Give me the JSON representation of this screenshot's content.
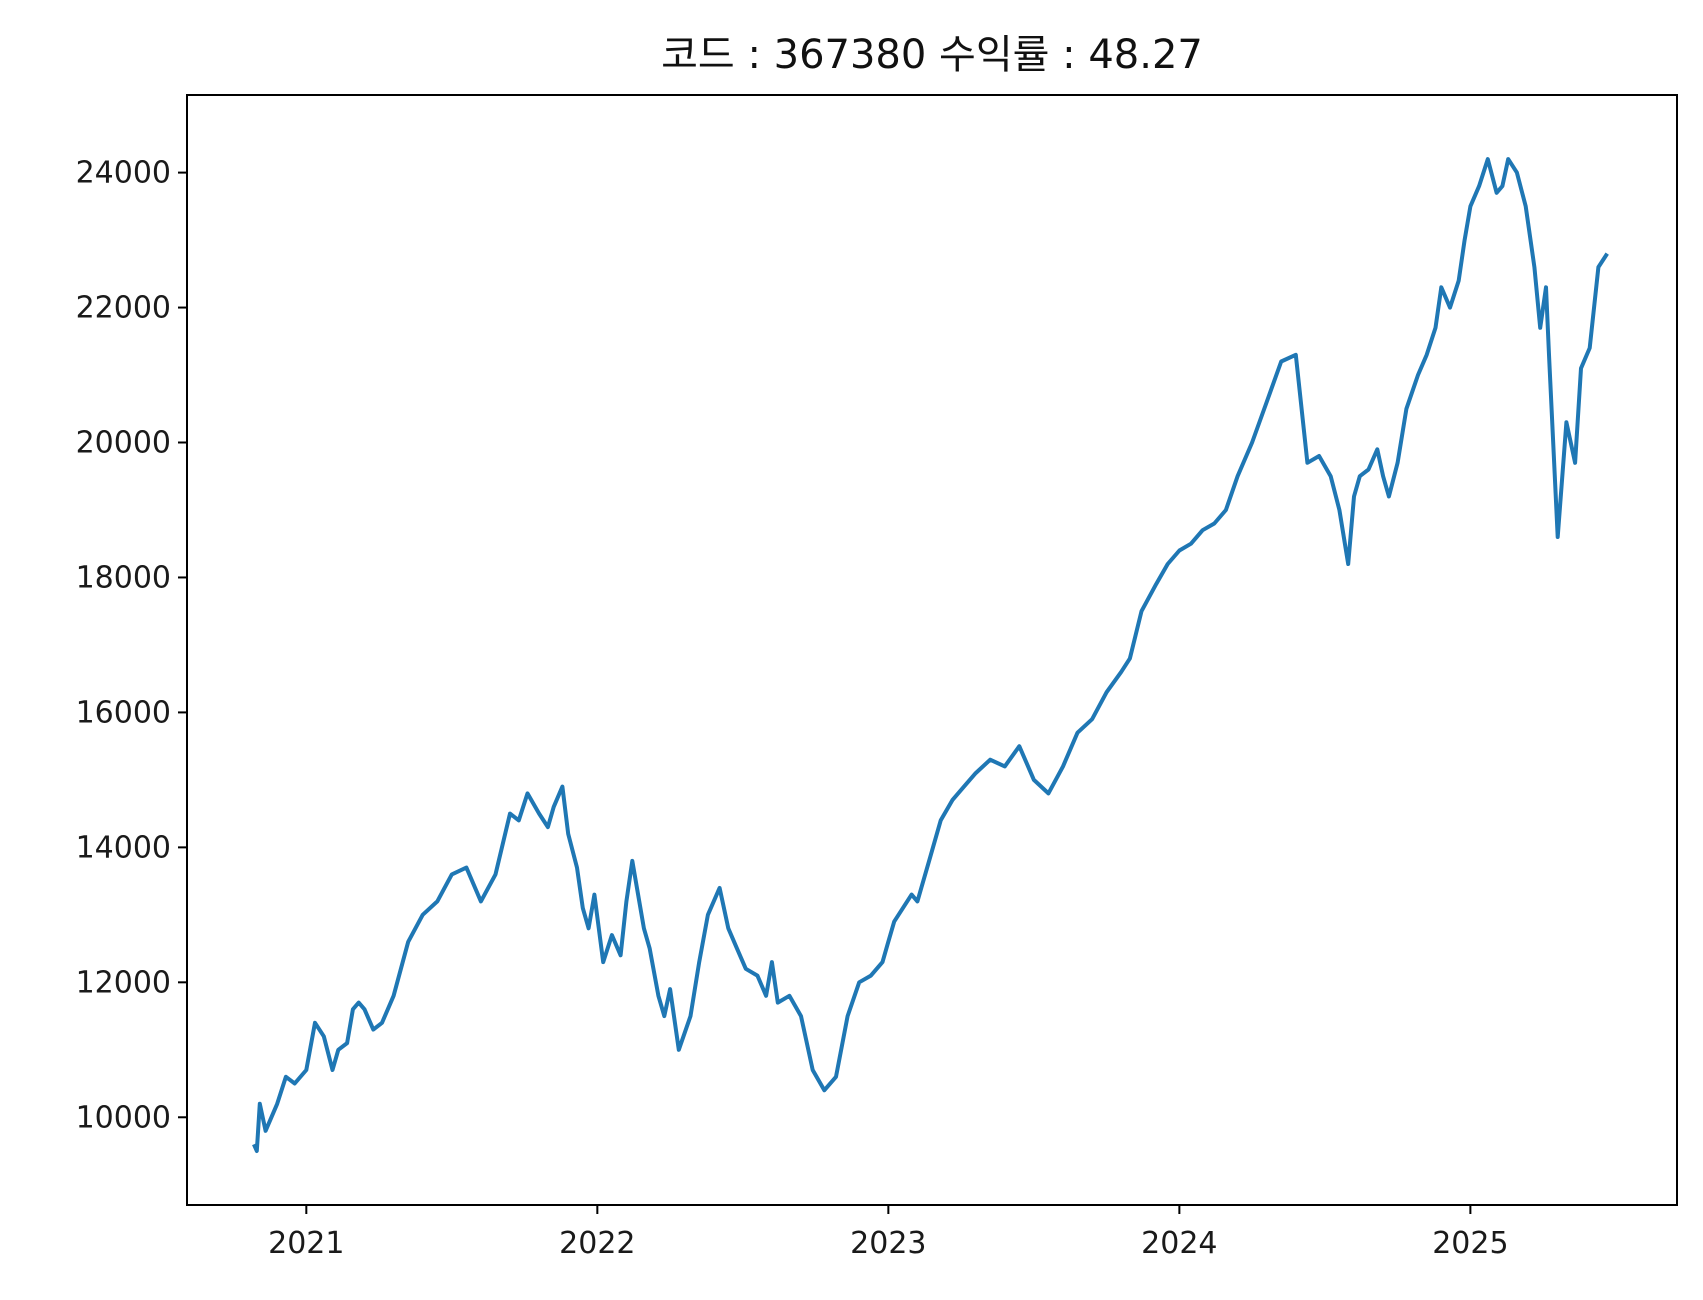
{
  "chart_data": {
    "type": "line",
    "title": "코드 : 367380 수익률 : 48.27",
    "xlabel": "",
    "ylabel": "",
    "x_tick_labels": [
      "2021",
      "2022",
      "2023",
      "2024",
      "2025"
    ],
    "y_tick_labels": [
      "10000",
      "12000",
      "14000",
      "16000",
      "18000",
      "20000",
      "22000",
      "24000"
    ],
    "xlim": [
      2020.59,
      2025.71
    ],
    "ylim": [
      8700,
      25150
    ],
    "grid": false,
    "legend": "none",
    "colors": {
      "line": "#1f77b4",
      "axes": "#000000"
    },
    "series": [
      {
        "x": [
          2020.82,
          2020.83,
          2020.84,
          2020.86,
          2020.88,
          2020.9,
          2020.93,
          2020.96,
          2021.0,
          2021.03,
          2021.06,
          2021.09,
          2021.11,
          2021.14,
          2021.16,
          2021.18,
          2021.2,
          2021.23,
          2021.26,
          2021.3,
          2021.35,
          2021.4,
          2021.45,
          2021.5,
          2021.55,
          2021.6,
          2021.65,
          2021.7,
          2021.73,
          2021.76,
          2021.8,
          2021.83,
          2021.85,
          2021.88,
          2021.9,
          2021.93,
          2021.95,
          2021.97,
          2021.99,
          2022.02,
          2022.05,
          2022.08,
          2022.1,
          2022.12,
          2022.14,
          2022.16,
          2022.18,
          2022.21,
          2022.23,
          2022.25,
          2022.28,
          2022.32,
          2022.35,
          2022.38,
          2022.42,
          2022.45,
          2022.48,
          2022.51,
          2022.55,
          2022.58,
          2022.6,
          2022.62,
          2022.66,
          2022.7,
          2022.74,
          2022.78,
          2022.82,
          2022.86,
          2022.9,
          2022.94,
          2022.98,
          2023.0,
          2023.02,
          2023.05,
          2023.08,
          2023.1,
          2023.14,
          2023.18,
          2023.22,
          2023.26,
          2023.3,
          2023.35,
          2023.4,
          2023.45,
          2023.5,
          2023.55,
          2023.6,
          2023.65,
          2023.7,
          2023.75,
          2023.8,
          2023.83,
          2023.87,
          2023.92,
          2023.96,
          2024.0,
          2024.04,
          2024.08,
          2024.12,
          2024.16,
          2024.2,
          2024.25,
          2024.3,
          2024.35,
          2024.4,
          2024.44,
          2024.48,
          2024.52,
          2024.55,
          2024.58,
          2024.6,
          2024.62,
          2024.65,
          2024.68,
          2024.7,
          2024.72,
          2024.75,
          2024.78,
          2024.82,
          2024.85,
          2024.88,
          2024.9,
          2024.93,
          2024.96,
          2024.98,
          2025.0,
          2025.03,
          2025.06,
          2025.09,
          2025.11,
          2025.13,
          2025.16,
          2025.19,
          2025.22,
          2025.24,
          2025.26,
          2025.27,
          2025.3,
          2025.33,
          2025.36,
          2025.38,
          2025.41,
          2025.44,
          2025.47
        ],
        "y": [
          9600,
          9500,
          10200,
          9800,
          10000,
          10200,
          10600,
          10500,
          10700,
          11400,
          11200,
          10700,
          11000,
          11100,
          11600,
          11700,
          11600,
          11300,
          11400,
          11800,
          12600,
          13000,
          13200,
          13600,
          13700,
          13200,
          13600,
          14500,
          14400,
          14800,
          14500,
          14300,
          14600,
          14900,
          14200,
          13700,
          13100,
          12800,
          13300,
          12300,
          12700,
          12400,
          13200,
          13800,
          13300,
          12800,
          12500,
          11800,
          11500,
          11900,
          11000,
          11500,
          12300,
          13000,
          13400,
          12800,
          12500,
          12200,
          12100,
          11800,
          12300,
          11700,
          11800,
          11500,
          10700,
          10400,
          10600,
          11500,
          12000,
          12100,
          12300,
          12600,
          12900,
          13100,
          13300,
          13200,
          13800,
          14400,
          14700,
          14900,
          15100,
          15300,
          15200,
          15500,
          15000,
          14800,
          15200,
          15700,
          15900,
          16300,
          16600,
          16800,
          17500,
          17900,
          18200,
          18400,
          18500,
          18700,
          18800,
          19000,
          19500,
          20000,
          20600,
          21200,
          21300,
          19700,
          19800,
          19500,
          19000,
          18200,
          19200,
          19500,
          19600,
          19900,
          19500,
          19200,
          19700,
          20500,
          21000,
          21300,
          21700,
          22300,
          22000,
          22400,
          23000,
          23500,
          23800,
          24200,
          23700,
          23800,
          24200,
          24000,
          23500,
          22600,
          21700,
          22300,
          21300,
          18600,
          20300,
          19700,
          21100,
          21400,
          22600,
          22800
        ]
      }
    ]
  }
}
